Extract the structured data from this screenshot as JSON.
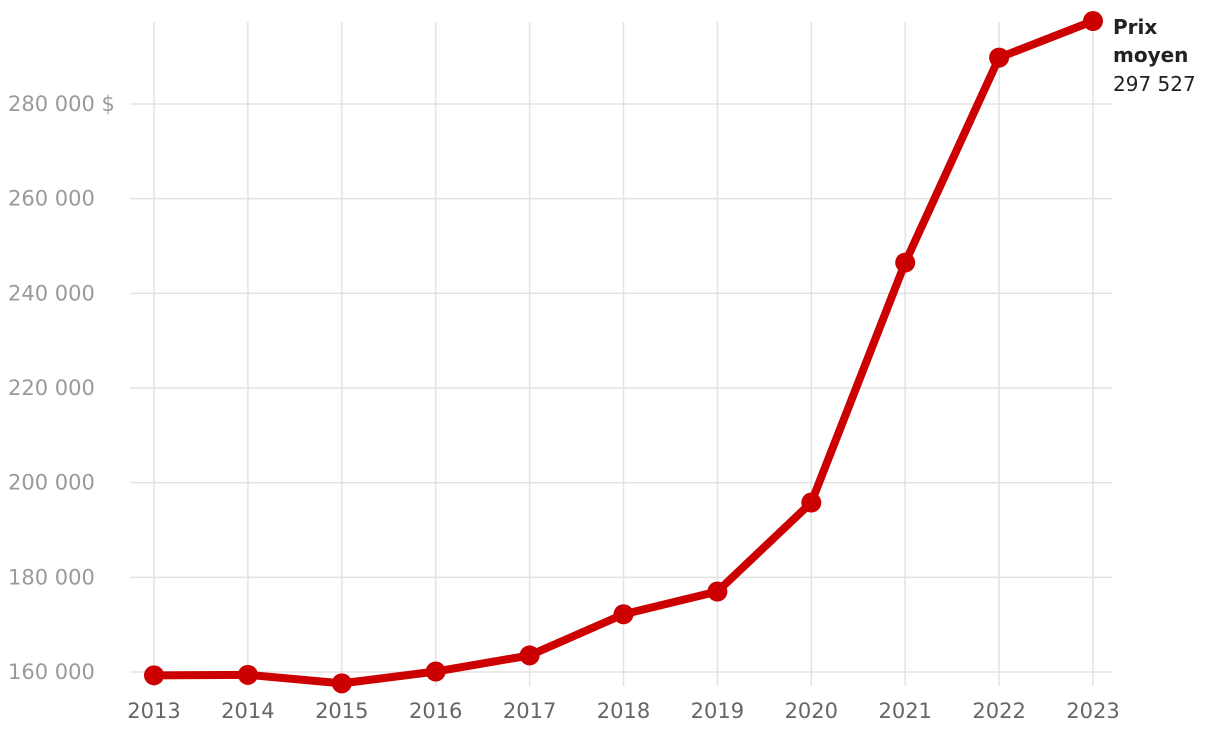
{
  "chart_data": {
    "type": "line",
    "title": "",
    "xlabel": "",
    "ylabel": "",
    "x": [
      "2013",
      "2014",
      "2015",
      "2016",
      "2017",
      "2018",
      "2019",
      "2020",
      "2021",
      "2022",
      "2023"
    ],
    "series": [
      {
        "name": "Prix moyen",
        "color": "#cc0000",
        "values": [
          159300,
          159400,
          157600,
          160100,
          163500,
          172200,
          177000,
          195800,
          246500,
          289800,
          297527
        ]
      }
    ],
    "ylim": [
      158000,
      298000
    ],
    "yticks": [
      160000,
      180000,
      200000,
      220000,
      240000,
      260000,
      280000
    ],
    "ytick_labels": [
      "160 000",
      "180 000",
      "200 000",
      "220 000",
      "240 000",
      "260 000",
      "280 000 $"
    ],
    "grid": true,
    "end_label": {
      "name_lines": [
        "Prix",
        "moyen"
      ],
      "value": "297 527"
    }
  }
}
